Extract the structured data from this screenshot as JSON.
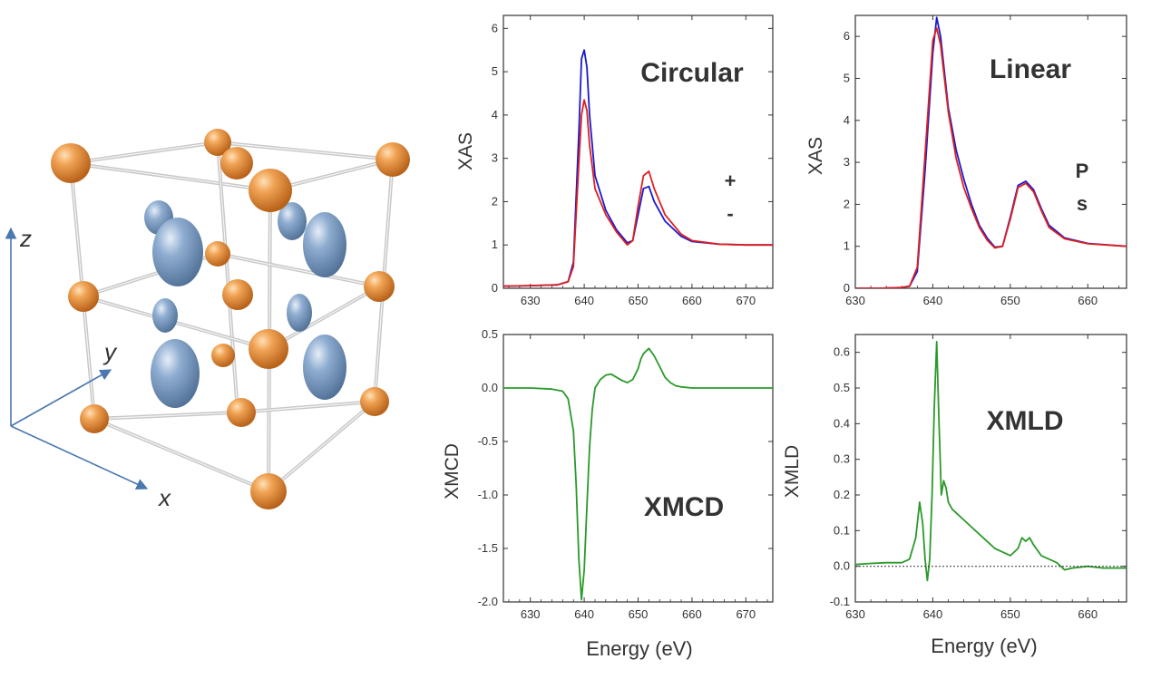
{
  "crystal": {
    "axes": {
      "x": "x",
      "y": "y",
      "z": "z"
    },
    "colors": {
      "cation": "#e8923a",
      "anion": "#7f9fc4",
      "bond": "#c8c8c8",
      "axis": "#4a78b0"
    }
  },
  "charts": [
    {
      "id": "circular",
      "chart_data": {
        "type": "line",
        "title": "Circular",
        "ylabel": "XAS",
        "xlabel": "",
        "xlim": [
          625,
          675
        ],
        "ylim": [
          0,
          6.3
        ],
        "xticks": [
          630,
          640,
          650,
          660,
          670
        ],
        "yticks": [
          0,
          1,
          2,
          3,
          4,
          5,
          6
        ],
        "legend_position": "right",
        "series": [
          {
            "name": "+",
            "color": "#1a1acc",
            "x": [
              625,
              630,
              635,
              637,
              638,
              639,
              639.5,
              640,
              640.5,
              641,
              642,
              644,
              646,
              648,
              649,
              650,
              651,
              652,
              653,
              655,
              658,
              660,
              665,
              670,
              675
            ],
            "y": [
              0.05,
              0.06,
              0.08,
              0.15,
              0.6,
              3.6,
              5.3,
              5.5,
              5.1,
              4.0,
              2.6,
              1.8,
              1.35,
              1.05,
              1.1,
              1.7,
              2.3,
              2.35,
              2.0,
              1.55,
              1.2,
              1.08,
              1.02,
              1.0,
              1.0
            ]
          },
          {
            "name": "-",
            "color": "#dd2020",
            "x": [
              625,
              630,
              635,
              637,
              638,
              639,
              639.5,
              640,
              640.5,
              641,
              642,
              644,
              646,
              648,
              649,
              650,
              651,
              652,
              653,
              655,
              658,
              660,
              665,
              670,
              675
            ],
            "y": [
              0.05,
              0.06,
              0.08,
              0.15,
              0.5,
              2.9,
              4.0,
              4.35,
              4.1,
              3.3,
              2.3,
              1.7,
              1.3,
              1.0,
              1.1,
              1.9,
              2.6,
              2.7,
              2.3,
              1.7,
              1.25,
              1.1,
              1.02,
              1.0,
              1.0
            ]
          }
        ]
      }
    },
    {
      "id": "linear",
      "chart_data": {
        "type": "line",
        "title": "Linear",
        "ylabel": "XAS",
        "xlabel": "",
        "xlim": [
          630,
          665
        ],
        "ylim": [
          0,
          6.5
        ],
        "xticks": [
          630,
          640,
          650,
          660
        ],
        "yticks": [
          0,
          1,
          2,
          3,
          4,
          5,
          6
        ],
        "legend_position": "right",
        "series": [
          {
            "name": "P",
            "color": "#1a1acc",
            "x": [
              630,
              633,
              636,
              637,
              638,
              639,
              640,
              640.5,
              641,
              642,
              643,
              644,
              645,
              646,
              647,
              648,
              649,
              650,
              651,
              652,
              653,
              654,
              655,
              657,
              660,
              665
            ],
            "y": [
              0,
              0,
              0.02,
              0.05,
              0.4,
              2.8,
              5.6,
              6.45,
              6.0,
              4.3,
              3.3,
              2.6,
              2.0,
              1.5,
              1.2,
              0.98,
              1.0,
              1.7,
              2.45,
              2.55,
              2.35,
              1.9,
              1.5,
              1.2,
              1.07,
              1.0
            ]
          },
          {
            "name": "s",
            "color": "#dd2020",
            "x": [
              630,
              633,
              636,
              637,
              638,
              639,
              640,
              640.5,
              641,
              642,
              643,
              644,
              645,
              646,
              647,
              648,
              649,
              650,
              651,
              652,
              653,
              654,
              655,
              657,
              660,
              665
            ],
            "y": [
              0,
              0,
              0.02,
              0.05,
              0.5,
              3.2,
              5.9,
              6.2,
              5.8,
              4.2,
              3.1,
              2.4,
              1.9,
              1.45,
              1.15,
              0.96,
              1.0,
              1.65,
              2.4,
              2.5,
              2.3,
              1.85,
              1.45,
              1.18,
              1.06,
              1.0
            ]
          }
        ]
      }
    },
    {
      "id": "xmcd",
      "chart_data": {
        "type": "line",
        "title": "XMCD",
        "ylabel": "XMCD",
        "xlabel": "Energy (eV)",
        "xlim": [
          625,
          675
        ],
        "ylim": [
          -2.0,
          0.5
        ],
        "xticks": [
          630,
          640,
          650,
          660,
          670
        ],
        "yticks": [
          -2.0,
          -1.5,
          -1.0,
          -0.5,
          0.0,
          0.5
        ],
        "series": [
          {
            "name": "",
            "color": "#2a9a2a",
            "x": [
              625,
              630,
              634,
              636,
              637,
              638,
              638.5,
              639,
              639.5,
              640,
              640.5,
              641,
              641.5,
              642,
              643,
              644,
              645,
              646,
              647,
              648,
              649,
              650,
              650.5,
              651,
              652,
              653,
              654,
              655,
              656,
              657,
              658,
              660,
              665,
              670,
              675
            ],
            "y": [
              0,
              0,
              -0.01,
              -0.03,
              -0.1,
              -0.4,
              -0.9,
              -1.6,
              -1.98,
              -1.7,
              -1.1,
              -0.55,
              -0.2,
              0.0,
              0.08,
              0.12,
              0.13,
              0.1,
              0.07,
              0.05,
              0.08,
              0.18,
              0.27,
              0.32,
              0.37,
              0.3,
              0.2,
              0.1,
              0.05,
              0.02,
              0.01,
              0.0,
              0.0,
              0.0,
              0.0
            ]
          }
        ]
      }
    },
    {
      "id": "xmld",
      "chart_data": {
        "type": "line",
        "title": "XMLD",
        "ylabel": "XMLD",
        "xlabel": "Energy (eV)",
        "xlim": [
          630,
          665
        ],
        "ylim": [
          -0.1,
          0.65
        ],
        "xticks": [
          630,
          640,
          650,
          660
        ],
        "yticks": [
          -0.1,
          0.0,
          0.1,
          0.2,
          0.3,
          0.4,
          0.5,
          0.6
        ],
        "series": [
          {
            "name": "",
            "color": "#2a9a2a",
            "x": [
              630,
              632,
              634,
              636,
              637,
              637.8,
              638.3,
              638.7,
              639,
              639.3,
              639.6,
              639.9,
              640.2,
              640.5,
              640.8,
              641.1,
              641.4,
              641.7,
              642,
              642.5,
              643,
              644,
              645,
              646,
              647,
              648,
              649,
              650,
              651,
              651.5,
              652,
              652.5,
              653,
              654,
              655,
              656,
              657,
              658,
              660,
              662,
              665
            ],
            "y": [
              0.005,
              0.008,
              0.01,
              0.01,
              0.02,
              0.08,
              0.18,
              0.12,
              0.02,
              -0.04,
              0.02,
              0.2,
              0.45,
              0.63,
              0.4,
              0.2,
              0.24,
              0.22,
              0.18,
              0.16,
              0.15,
              0.13,
              0.11,
              0.09,
              0.07,
              0.05,
              0.04,
              0.03,
              0.05,
              0.08,
              0.07,
              0.08,
              0.06,
              0.03,
              0.02,
              0.01,
              -0.01,
              -0.005,
              0.0,
              -0.005,
              -0.005
            ]
          },
          {
            "name": "",
            "color": "#333333",
            "dashed": true,
            "x": [
              630,
              665
            ],
            "y": [
              0,
              0
            ]
          }
        ]
      }
    }
  ]
}
